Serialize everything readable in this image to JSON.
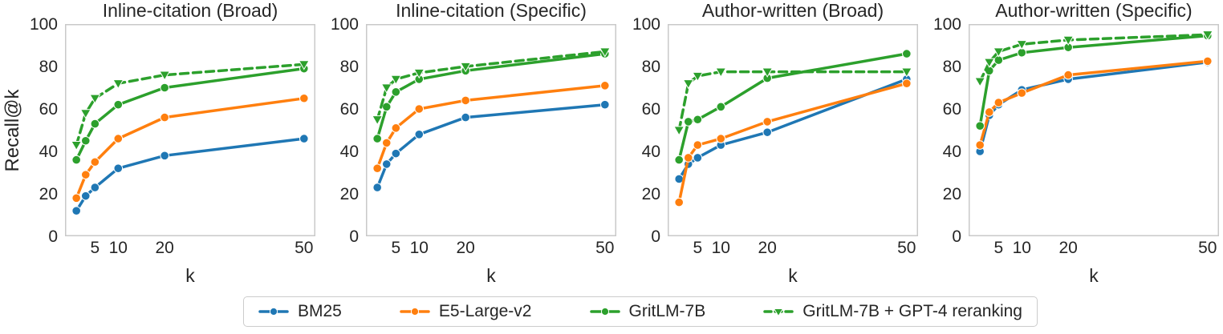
{
  "figure": {
    "ylabel": "Recall@k",
    "xlabel": "k",
    "text_color": "#262626",
    "frame_color": "#c9c9c9",
    "background": "#ffffff",
    "legend_position": "bottom center"
  },
  "legend": {
    "items": [
      {
        "label": "BM25",
        "color": "#1f77b4",
        "style": "solid",
        "marker": "circle"
      },
      {
        "label": "E5-Large-v2",
        "color": "#ff7f0e",
        "style": "solid",
        "marker": "circle"
      },
      {
        "label": "GritLM-7B",
        "color": "#2ca02c",
        "style": "solid",
        "marker": "circle"
      },
      {
        "label": "GritLM-7B + GPT-4 reranking",
        "color": "#2ca02c",
        "style": "dashed",
        "marker": "triangle-down"
      }
    ]
  },
  "chart_data": [
    {
      "type": "line",
      "title": "Inline-citation (Broad)",
      "xlabel": "k",
      "ylabel": "Recall@k",
      "x": [
        1,
        3,
        5,
        10,
        20,
        50
      ],
      "x_ticks": [
        5,
        10,
        20,
        50
      ],
      "y_ticks": [
        0,
        20,
        40,
        60,
        80,
        100
      ],
      "xlim": [
        -1.45,
        52.45
      ],
      "ylim": [
        0,
        100
      ],
      "grid": false,
      "series": [
        {
          "name": "BM25",
          "values": [
            12,
            19,
            23,
            32,
            38,
            46
          ]
        },
        {
          "name": "E5-Large-v2",
          "values": [
            18,
            29,
            35,
            46,
            56,
            65
          ]
        },
        {
          "name": "GritLM-7B",
          "values": [
            36,
            45,
            53,
            62,
            70,
            79
          ]
        },
        {
          "name": "GritLM-7B + GPT-4 reranking",
          "values": [
            43,
            58,
            65,
            72,
            76,
            81
          ]
        }
      ]
    },
    {
      "type": "line",
      "title": "Inline-citation (Specific)",
      "xlabel": "k",
      "ylabel": "Recall@k",
      "x": [
        1,
        3,
        5,
        10,
        20,
        50
      ],
      "x_ticks": [
        5,
        10,
        20,
        50
      ],
      "y_ticks": [
        0,
        20,
        40,
        60,
        80,
        100
      ],
      "xlim": [
        -1.45,
        52.45
      ],
      "ylim": [
        0,
        100
      ],
      "grid": false,
      "series": [
        {
          "name": "BM25",
          "values": [
            23,
            34,
            39,
            48,
            56,
            62
          ]
        },
        {
          "name": "E5-Large-v2",
          "values": [
            32,
            44,
            51,
            60,
            64,
            71
          ]
        },
        {
          "name": "GritLM-7B",
          "values": [
            46,
            61,
            68,
            74,
            78,
            86
          ]
        },
        {
          "name": "GritLM-7B + GPT-4 reranking",
          "values": [
            55,
            70,
            74,
            77,
            80,
            87
          ]
        }
      ]
    },
    {
      "type": "line",
      "title": "Author-written (Broad)",
      "xlabel": "k",
      "ylabel": "Recall@k",
      "x": [
        1,
        3,
        5,
        10,
        20,
        50
      ],
      "x_ticks": [
        5,
        10,
        20,
        50
      ],
      "y_ticks": [
        0,
        20,
        40,
        60,
        80,
        100
      ],
      "xlim": [
        -1.45,
        52.45
      ],
      "ylim": [
        0,
        100
      ],
      "grid": false,
      "series": [
        {
          "name": "BM25",
          "values": [
            27,
            34,
            37,
            43,
            49,
            74
          ]
        },
        {
          "name": "E5-Large-v2",
          "values": [
            16,
            37,
            43,
            46,
            54,
            72
          ]
        },
        {
          "name": "GritLM-7B",
          "values": [
            36,
            54,
            55,
            61,
            74.5,
            86
          ]
        },
        {
          "name": "GritLM-7B + GPT-4 reranking",
          "values": [
            50,
            72,
            75.5,
            77.5,
            77.5,
            77.5
          ]
        }
      ]
    },
    {
      "type": "line",
      "title": "Author-written (Specific)",
      "xlabel": "k",
      "ylabel": "Recall@k",
      "x": [
        1,
        3,
        5,
        10,
        20,
        50
      ],
      "x_ticks": [
        5,
        10,
        20,
        50
      ],
      "y_ticks": [
        0,
        20,
        40,
        60,
        80,
        100
      ],
      "xlim": [
        -1.45,
        52.45
      ],
      "ylim": [
        0,
        100
      ],
      "grid": false,
      "series": [
        {
          "name": "BM25",
          "values": [
            40,
            57,
            62,
            69,
            74,
            82
          ]
        },
        {
          "name": "E5-Large-v2",
          "values": [
            43,
            58.5,
            63,
            67.5,
            76,
            82.5
          ]
        },
        {
          "name": "GritLM-7B",
          "values": [
            52,
            78,
            83,
            86.5,
            89,
            94.5
          ]
        },
        {
          "name": "GritLM-7B + GPT-4 reranking",
          "values": [
            73,
            82,
            87,
            90.5,
            92.5,
            95
          ]
        }
      ]
    }
  ]
}
